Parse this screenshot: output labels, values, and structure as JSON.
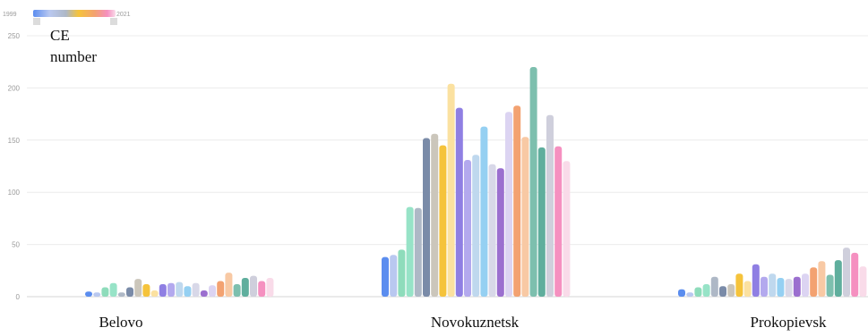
{
  "chart_data": {
    "type": "bar",
    "title": "",
    "ylabel": "CE number",
    "ylabel_lines": [
      "CE",
      "number"
    ],
    "xlabel": "",
    "ylim": [
      0,
      250
    ],
    "yticks": [
      0,
      50,
      100,
      150,
      200,
      250
    ],
    "grid": true,
    "legend": {
      "type": "gradient",
      "position": "top-left",
      "start_label": "1999",
      "end_label": "2021"
    },
    "categories": [
      "Belovo",
      "Novokuznetsk",
      "Prokopievsk"
    ],
    "series": [
      {
        "color": "#5b8def",
        "values": [
          5,
          38,
          7
        ]
      },
      {
        "color": "#b9c8f0",
        "values": [
          4,
          40,
          4
        ]
      },
      {
        "color": "#8edcbb",
        "values": [
          9,
          45,
          9
        ]
      },
      {
        "color": "#97e3c7",
        "values": [
          13,
          86,
          12
        ]
      },
      {
        "color": "#aeb8c6",
        "values": [
          4,
          85,
          19
        ]
      },
      {
        "color": "#7a8ba8",
        "values": [
          9,
          152,
          10
        ]
      },
      {
        "color": "#cbc6bb",
        "values": [
          17,
          156,
          12
        ]
      },
      {
        "color": "#f5c33b",
        "values": [
          12,
          145,
          22
        ]
      },
      {
        "color": "#fbe1a0",
        "values": [
          6,
          204,
          15
        ]
      },
      {
        "color": "#8f7fe3",
        "values": [
          12,
          181,
          31
        ]
      },
      {
        "color": "#b3a9ee",
        "values": [
          13,
          131,
          19
        ]
      },
      {
        "color": "#bfd8ee",
        "values": [
          14,
          136,
          22
        ]
      },
      {
        "color": "#95d0f2",
        "values": [
          10,
          163,
          18
        ]
      },
      {
        "color": "#d8d8e8",
        "values": [
          13,
          127,
          17
        ]
      },
      {
        "color": "#9b6fcf",
        "values": [
          6,
          123,
          19
        ]
      },
      {
        "color": "#dcd4f2",
        "values": [
          11,
          177,
          22
        ]
      },
      {
        "color": "#f3a271",
        "values": [
          15,
          183,
          28
        ]
      },
      {
        "color": "#f8c9a4",
        "values": [
          23,
          153,
          34
        ]
      },
      {
        "color": "#7dbfae",
        "values": [
          12,
          220,
          21
        ]
      },
      {
        "color": "#5fae9d",
        "values": [
          18,
          143,
          35
        ]
      },
      {
        "color": "#cfcfdc",
        "values": [
          20,
          174,
          47
        ]
      },
      {
        "color": "#f590c0",
        "values": [
          15,
          144,
          42
        ]
      },
      {
        "color": "#f9dbe9",
        "values": [
          18,
          130,
          29
        ]
      }
    ]
  }
}
